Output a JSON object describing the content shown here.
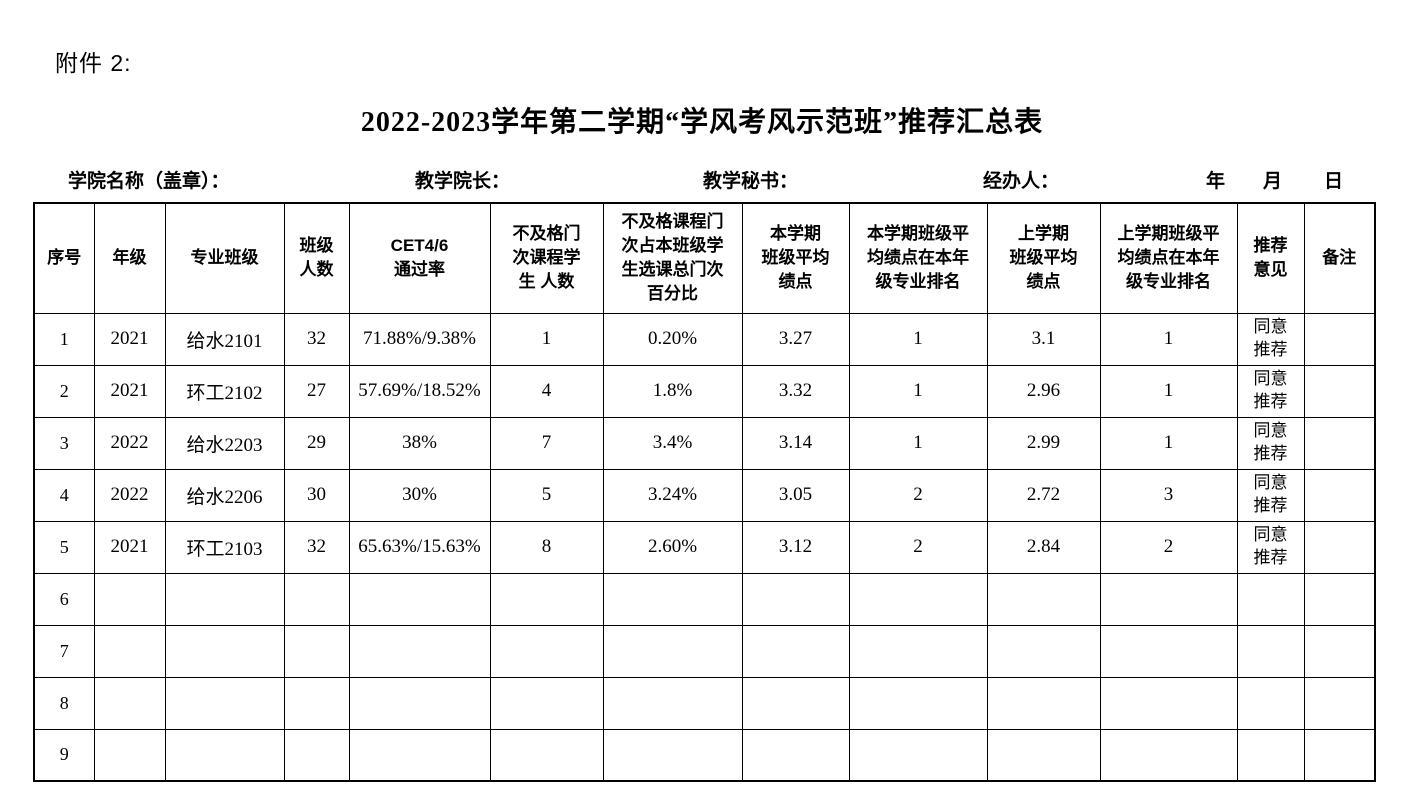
{
  "page": {
    "attachment_label": "附件 2:",
    "title": "2022-2023学年第二学期“学风考风示范班”推荐汇总表"
  },
  "signature_row": {
    "college_label": "学院名称（盖章）：",
    "dean_label": "教学院长：",
    "secretary_label": "教学秘书：",
    "handler_label": "经办人：",
    "year_label": "年",
    "month_label": "月",
    "day_label": "日"
  },
  "table": {
    "headers": [
      "序号",
      "年级",
      "专业班级",
      "班级\n人数",
      "CET4/6\n通过率",
      "不及格门\n次课程学\n生 人数",
      "不及格课程门\n次占本班级学\n生选课总门次\n百分比",
      "本学期\n班级平均\n绩点",
      "本学期班级平\n均绩点在本年\n级专业排名",
      "上学期\n班级平均\n绩点",
      "上学期班级平\n均绩点在本年\n级专业排名",
      "推荐\n意见",
      "备注"
    ],
    "rows": [
      [
        "1",
        "2021",
        "给水2101",
        "32",
        "71.88%/9.38%",
        "1",
        "0.20%",
        "3.27",
        "1",
        "3.1",
        "1",
        "同意\n推荐",
        ""
      ],
      [
        "2",
        "2021",
        "环工2102",
        "27",
        "57.69%/18.52%",
        "4",
        "1.8%",
        "3.32",
        "1",
        "2.96",
        "1",
        "同意\n推荐",
        ""
      ],
      [
        "3",
        "2022",
        "给水2203",
        "29",
        "38%",
        "7",
        "3.4%",
        "3.14",
        "1",
        "2.99",
        "1",
        "同意\n推荐",
        ""
      ],
      [
        "4",
        "2022",
        "给水2206",
        "30",
        "30%",
        "5",
        "3.24%",
        "3.05",
        "2",
        "2.72",
        "3",
        "同意\n推荐",
        ""
      ],
      [
        "5",
        "2021",
        "环工2103",
        "32",
        "65.63%/15.63%",
        "8",
        "2.60%",
        "3.12",
        "2",
        "2.84",
        "2",
        "同意\n推荐",
        ""
      ],
      [
        "6",
        "",
        "",
        "",
        "",
        "",
        "",
        "",
        "",
        "",
        "",
        "",
        ""
      ],
      [
        "7",
        "",
        "",
        "",
        "",
        "",
        "",
        "",
        "",
        "",
        "",
        "",
        ""
      ],
      [
        "8",
        "",
        "",
        "",
        "",
        "",
        "",
        "",
        "",
        "",
        "",
        "",
        ""
      ],
      [
        "9",
        "",
        "",
        "",
        "",
        "",
        "",
        "",
        "",
        "",
        "",
        "",
        ""
      ]
    ]
  }
}
